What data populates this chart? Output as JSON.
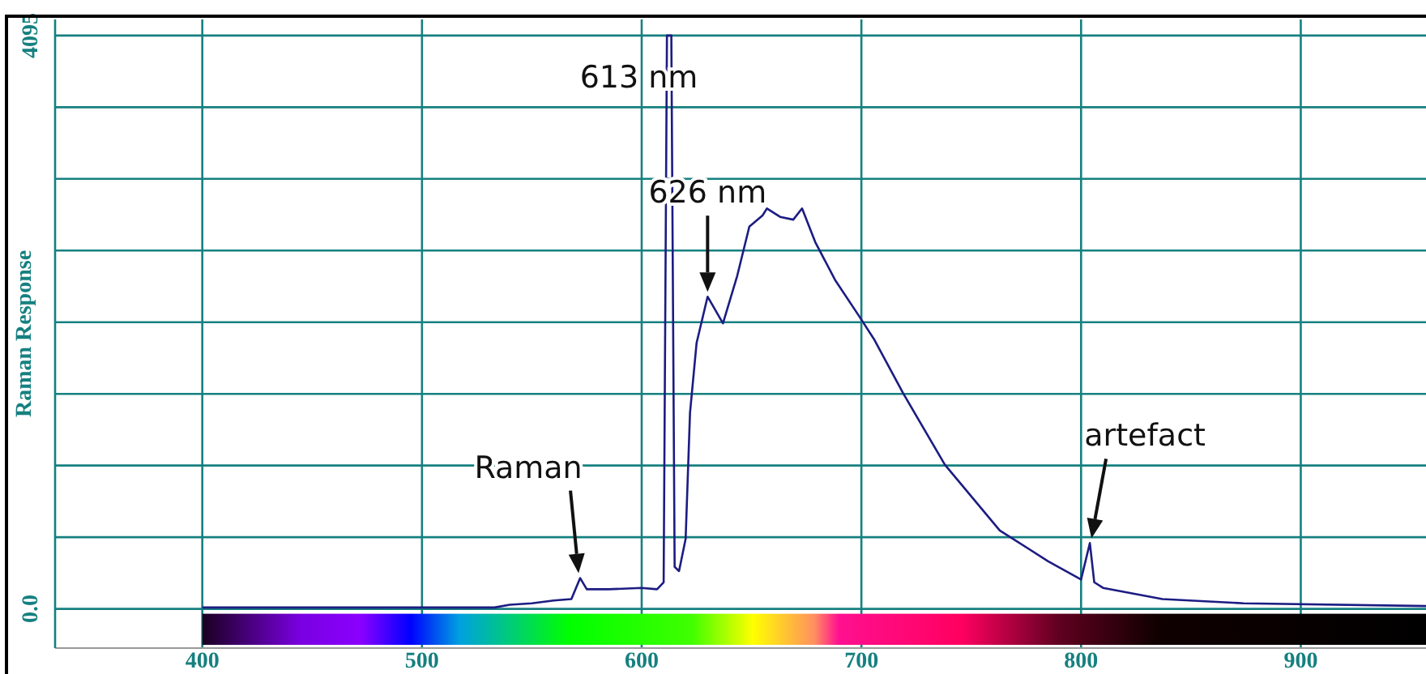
{
  "chart_data": {
    "type": "line",
    "ylabel": "Raman Response",
    "x": [
      400,
      450,
      500,
      533,
      540,
      550,
      560,
      568,
      572,
      575,
      585,
      600,
      607,
      610,
      611.5,
      613.5,
      615,
      617,
      620,
      622,
      625,
      630,
      637,
      643.5,
      649,
      655,
      657,
      663,
      669,
      673,
      679,
      688,
      699,
      706,
      719,
      738,
      763,
      785,
      800,
      804,
      806,
      810,
      837,
      874,
      957
    ],
    "series": [
      {
        "color": "#1c1c82",
        "values": [
          10,
          10,
          10,
          10,
          30,
          40,
          60,
          70,
          220,
          140,
          140,
          150,
          140,
          190,
          4095,
          4095,
          300,
          270,
          500,
          1400,
          1900,
          2230,
          2040,
          2380,
          2730,
          2810,
          2860,
          2800,
          2780,
          2860,
          2620,
          2350,
          2090,
          1920,
          1540,
          1030,
          560,
          340,
          210,
          470,
          190,
          150,
          70,
          40,
          20
        ]
      }
    ],
    "xlim": [
      333,
      957
    ],
    "ylim": [
      -280,
      4210
    ],
    "xticks": [
      400,
      500,
      600,
      700,
      800,
      900
    ],
    "yticks": [
      {
        "value": 0,
        "label": "0.0"
      },
      {
        "value": 511.875,
        "label": null
      },
      {
        "value": 1023.75,
        "label": null
      },
      {
        "value": 1535.625,
        "label": null
      },
      {
        "value": 2047.5,
        "label": null
      },
      {
        "value": 2559.375,
        "label": null
      },
      {
        "value": 3071.25,
        "label": null
      },
      {
        "value": 3583.125,
        "label": null
      },
      4095
    ],
    "grid": true,
    "marker": "none",
    "line_style": "solid",
    "legend": false,
    "annotations": [
      {
        "text": "613 nm",
        "x": 612,
        "y": 4095
      },
      {
        "text": "626 nm",
        "x": 630,
        "y": 2230
      },
      {
        "text": "Raman",
        "x": 572,
        "y": 220
      },
      {
        "text": "artefact",
        "x": 804,
        "y": 470
      }
    ]
  }
}
